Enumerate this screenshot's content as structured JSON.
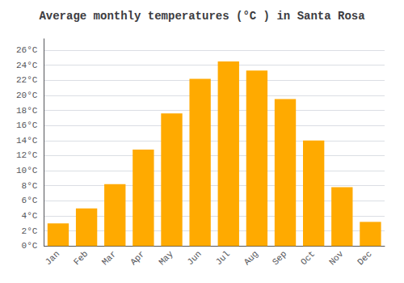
{
  "chart_data": {
    "type": "bar",
    "title": "Average monthly temperatures (°C ) in Santa Rosa",
    "categories": [
      "Jan",
      "Feb",
      "Mar",
      "Apr",
      "May",
      "Jun",
      "Jul",
      "Aug",
      "Sep",
      "Oct",
      "Nov",
      "Dec"
    ],
    "values": [
      3.0,
      5.0,
      8.2,
      12.8,
      17.6,
      22.2,
      24.5,
      23.3,
      19.5,
      14.0,
      7.8,
      3.2
    ],
    "color": "#FFAA00",
    "ylim": [
      0,
      27.5
    ],
    "yticks": [
      {
        "value": 0,
        "label": "0°C"
      },
      {
        "value": 2,
        "label": "2°C"
      },
      {
        "value": 4,
        "label": "4°C"
      },
      {
        "value": 6,
        "label": "6°C"
      },
      {
        "value": 8,
        "label": "8°C"
      },
      {
        "value": 10,
        "label": "10°C"
      },
      {
        "value": 12,
        "label": "12°C"
      },
      {
        "value": 14,
        "label": "14°C"
      },
      {
        "value": 16,
        "label": "16°C"
      },
      {
        "value": 18,
        "label": "18°C"
      },
      {
        "value": 20,
        "label": "20°C"
      },
      {
        "value": 22,
        "label": "22°C"
      },
      {
        "value": 24,
        "label": "24°C"
      },
      {
        "value": 26,
        "label": "26°C"
      }
    ],
    "grid": true
  }
}
